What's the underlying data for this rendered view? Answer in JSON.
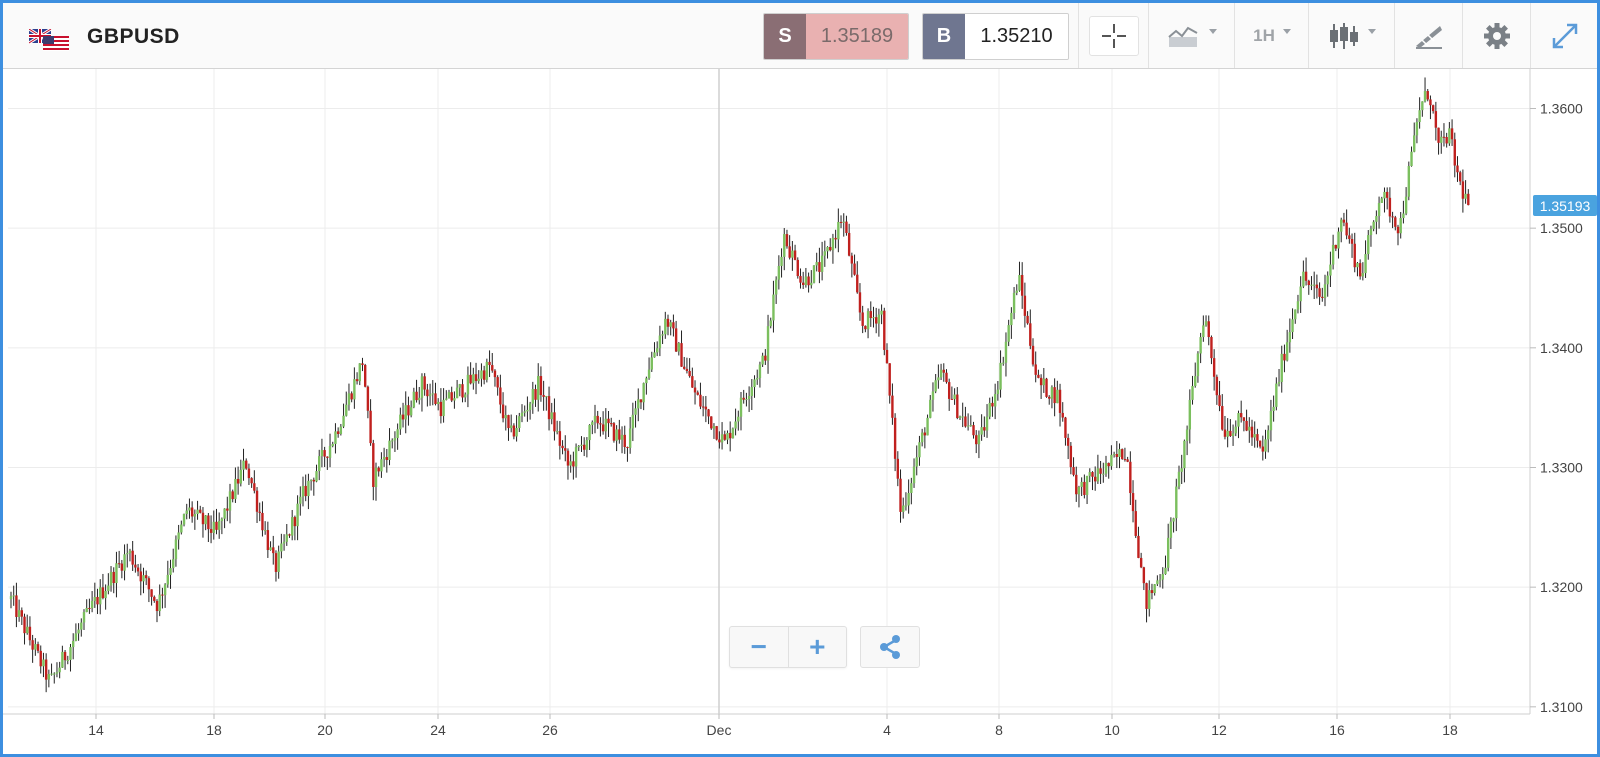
{
  "header": {
    "symbol": "GBPUSD",
    "flag_icon": "gb-us-flag-icon",
    "sell": {
      "letter": "S",
      "price": "1.35189"
    },
    "buy": {
      "letter": "B",
      "price": "1.35210"
    },
    "interval": "1H",
    "icons": [
      "crosshair-icon",
      "chart-type-icon",
      "candlestick-icon",
      "drawing-tools-icon",
      "gear-icon",
      "expand-icon"
    ]
  },
  "current_price_label": "1.35193",
  "controls": {
    "zoom_out": "−",
    "zoom_in": "+"
  },
  "colors": {
    "up": "#7bbf5e",
    "down": "#c0201e",
    "wick": "#222222",
    "accent": "#3d8fe0",
    "price_tag": "#4aa3df"
  },
  "chart_data": {
    "type": "candlestick",
    "title": "GBPUSD",
    "interval": "1H",
    "x_tick_labels": [
      "14",
      "18",
      "20",
      "24",
      "26",
      "Dec",
      "4",
      "8",
      "10",
      "12",
      "16",
      "18"
    ],
    "y_tick_labels": [
      "1.3600",
      "1.3500",
      "1.3400",
      "1.3300",
      "1.3200",
      "1.3100"
    ],
    "ylim": [
      1.3094,
      1.3633
    ],
    "grid": true,
    "current_price": 1.35193,
    "close_path": [
      [
        0,
        1.319
      ],
      [
        4,
        1.312
      ],
      [
        8,
        1.318
      ],
      [
        12,
        1.323
      ],
      [
        15,
        1.3185
      ],
      [
        18,
        1.3265
      ],
      [
        21,
        1.3245
      ],
      [
        24,
        1.3305
      ],
      [
        27,
        1.3215
      ],
      [
        30,
        1.328
      ],
      [
        33,
        1.3325
      ],
      [
        36,
        1.339
      ],
      [
        37,
        1.329
      ],
      [
        40,
        1.334
      ],
      [
        42,
        1.337
      ],
      [
        44,
        1.335
      ],
      [
        46,
        1.3365
      ],
      [
        49,
        1.3385
      ],
      [
        51,
        1.3325
      ],
      [
        54,
        1.337
      ],
      [
        57,
        1.33
      ],
      [
        60,
        1.334
      ],
      [
        63,
        1.332
      ],
      [
        65,
        1.338
      ],
      [
        67,
        1.3425
      ],
      [
        70,
        1.336
      ],
      [
        73,
        1.332
      ],
      [
        75,
        1.336
      ],
      [
        77,
        1.339
      ],
      [
        79,
        1.3495
      ],
      [
        81,
        1.3455
      ],
      [
        83,
        1.347
      ],
      [
        85,
        1.351
      ],
      [
        87,
        1.342
      ],
      [
        89,
        1.343
      ],
      [
        91,
        1.326
      ],
      [
        93,
        1.332
      ],
      [
        95,
        1.338
      ],
      [
        97,
        1.3345
      ],
      [
        99,
        1.332
      ],
      [
        101,
        1.3375
      ],
      [
        103,
        1.346
      ],
      [
        105,
        1.337
      ],
      [
        107,
        1.336
      ],
      [
        109,
        1.328
      ],
      [
        112,
        1.33
      ],
      [
        114,
        1.3315
      ],
      [
        116,
        1.3185
      ],
      [
        118,
        1.322
      ],
      [
        120,
        1.332
      ],
      [
        122,
        1.343
      ],
      [
        124,
        1.333
      ],
      [
        126,
        1.334
      ],
      [
        128,
        1.331
      ],
      [
        130,
        1.339
      ],
      [
        132,
        1.346
      ],
      [
        134,
        1.344
      ],
      [
        136,
        1.351
      ],
      [
        138,
        1.346
      ],
      [
        140,
        1.353
      ],
      [
        142,
        1.35
      ],
      [
        144,
        1.36
      ],
      [
        145,
        1.3615
      ],
      [
        146,
        1.3565
      ],
      [
        147,
        1.358
      ],
      [
        148,
        1.354
      ],
      [
        149,
        1.3519
      ]
    ]
  }
}
